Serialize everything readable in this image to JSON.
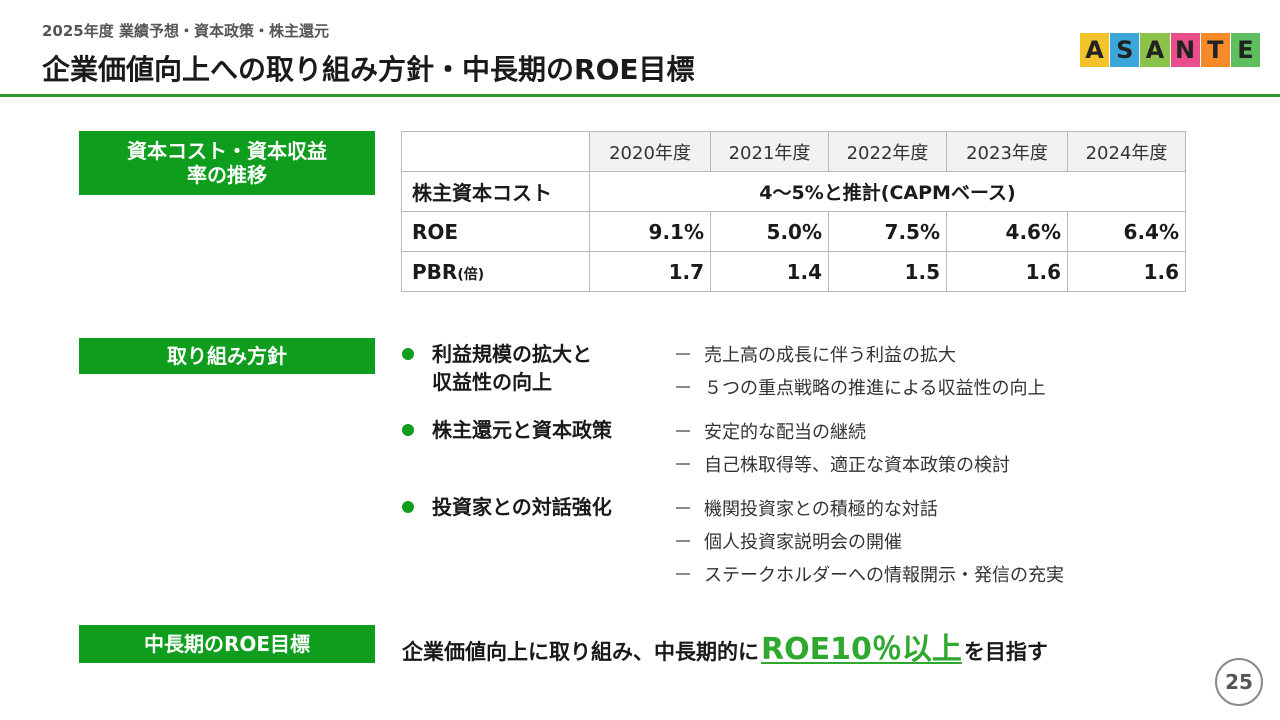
{
  "header": {
    "subtitle": "2025年度 業績予想・資本政策・株主還元",
    "title": "企業価値向上への取り組み方針・中長期のROE目標"
  },
  "logo": {
    "letters": [
      "A",
      "S",
      "A",
      "N",
      "T",
      "E"
    ],
    "colors": [
      "#f2c32a",
      "#3aa6d9",
      "#8bc34a",
      "#e84f8a",
      "#f58a2a",
      "#5fbf5f"
    ]
  },
  "section_labels": {
    "capital": "資本コスト・資本収益率の推移",
    "policy": "取り組み方針",
    "goal": "中長期のROE目標"
  },
  "table": {
    "years": [
      "2020年度",
      "2021年度",
      "2022年度",
      "2023年度",
      "2024年度"
    ],
    "cost_label": "株主資本コスト",
    "cost_value": "4～5%と推計(CAPMベース)",
    "roe_label": "ROE",
    "roe_values": [
      "9.1%",
      "5.0%",
      "7.5%",
      "4.6%",
      "6.4%"
    ],
    "pbr_label": "PBR",
    "pbr_unit": "(倍)",
    "pbr_values": [
      "1.7",
      "1.4",
      "1.5",
      "1.6",
      "1.6"
    ]
  },
  "policies": [
    {
      "title_lines": [
        "利益規模の拡大と",
        "収益性の向上"
      ],
      "items": [
        "売上高の成長に伴う利益の拡大",
        "５つの重点戦略の推進による収益性の向上"
      ]
    },
    {
      "title_lines": [
        "株主還元と資本政策"
      ],
      "items": [
        "安定的な配当の継続",
        "自己株取得等、適正な資本政策の検討"
      ]
    },
    {
      "title_lines": [
        "投資家との対話強化"
      ],
      "items": [
        "機関投資家との積極的な対話",
        "個人投資家説明会の開催",
        "ステークホルダーへの情報開示・発信の充実"
      ]
    }
  ],
  "goal": {
    "prefix": "企業価値向上に取り組み、中長期的に",
    "highlight": "ROE10％以上",
    "suffix": "を目指す"
  },
  "page_number": "25"
}
